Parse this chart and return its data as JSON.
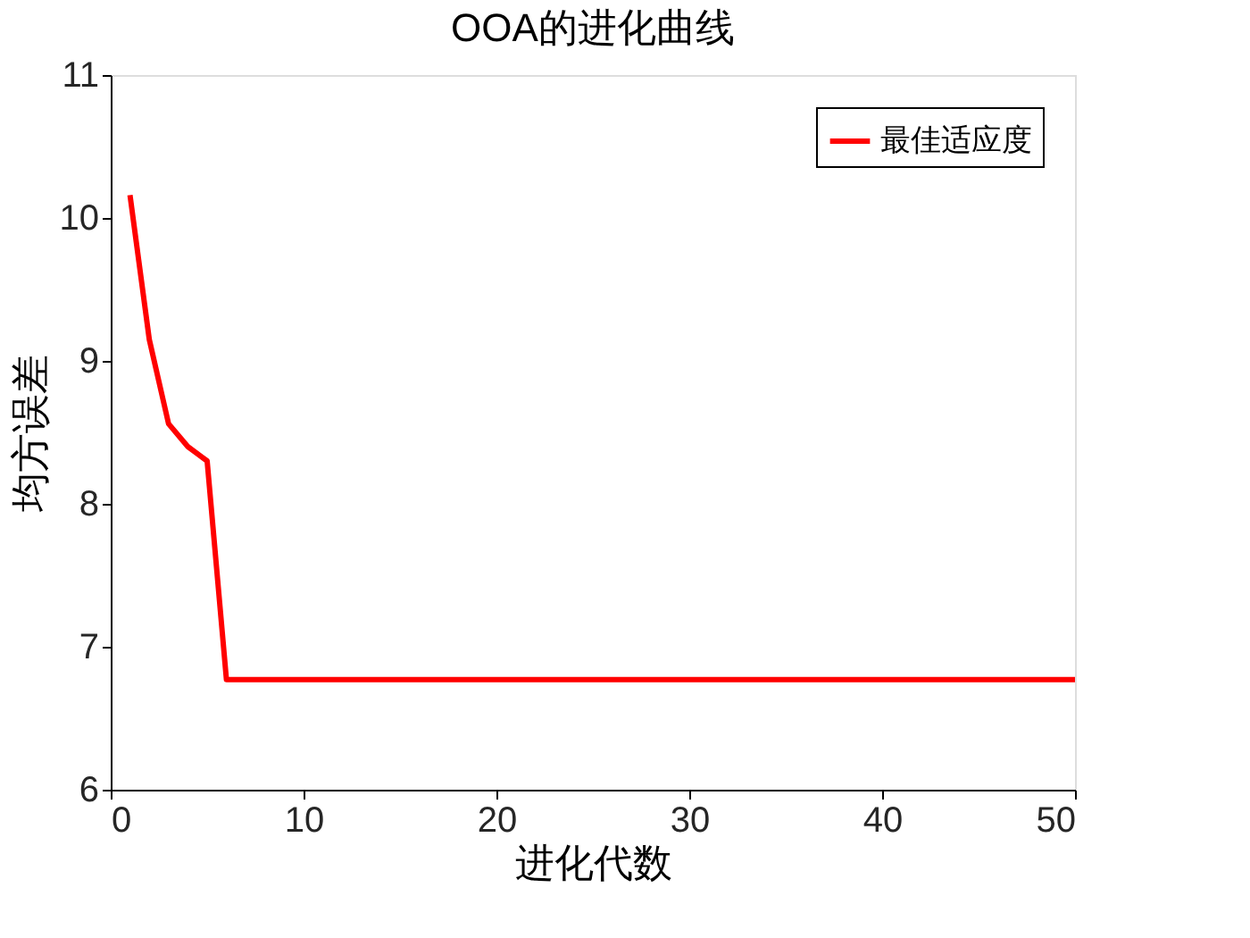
{
  "chart_data": {
    "type": "line",
    "title": "OOA的进化曲线",
    "xlabel": "进化代数",
    "ylabel": "均方误差",
    "x": [
      1,
      2,
      3,
      4,
      5,
      6,
      50
    ],
    "series": [
      {
        "name": "最佳适应度",
        "color": "#ff0000",
        "values": [
          10.16,
          9.15,
          8.56,
          8.4,
          8.3,
          6.77,
          6.77
        ]
      }
    ],
    "xlim": [
      0,
      50
    ],
    "xticks": [
      0,
      10,
      20,
      30,
      40,
      50
    ],
    "ylim": [
      6,
      11
    ],
    "yticks": [
      6,
      7,
      8,
      9,
      10,
      11
    ],
    "grid": false,
    "legend": "top right",
    "marker": "none",
    "line_style": "solid"
  }
}
